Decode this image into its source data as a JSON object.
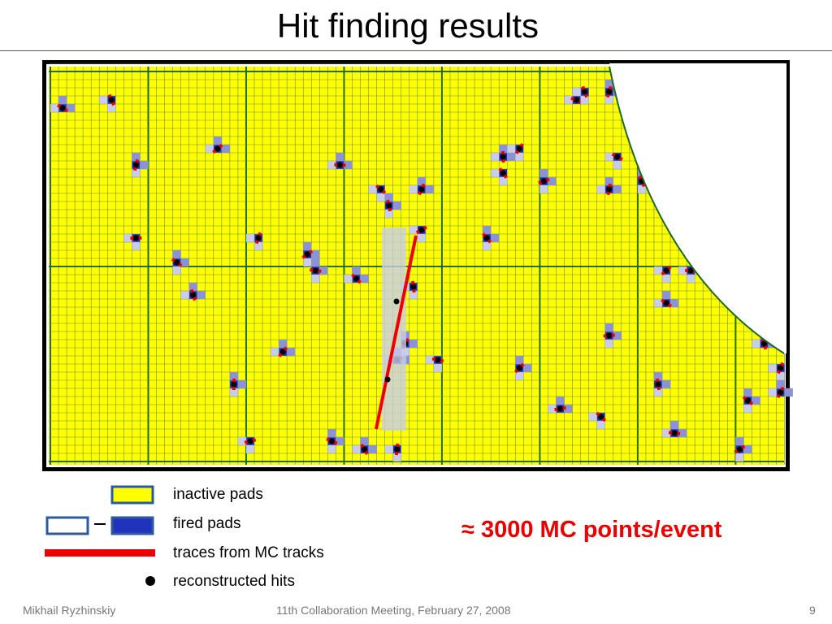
{
  "header": {
    "title": "Hit finding results"
  },
  "legend": {
    "items": [
      "inactive pads",
      "fired pads",
      "traces from MC tracks",
      "reconstructed hits"
    ]
  },
  "note": "≈ 3000 MC points/event",
  "footer": {
    "author": "Mikhail Ryzhinskiy",
    "event": "11th Collaboration Meeting, February 27, 2008",
    "page": 9
  }
}
